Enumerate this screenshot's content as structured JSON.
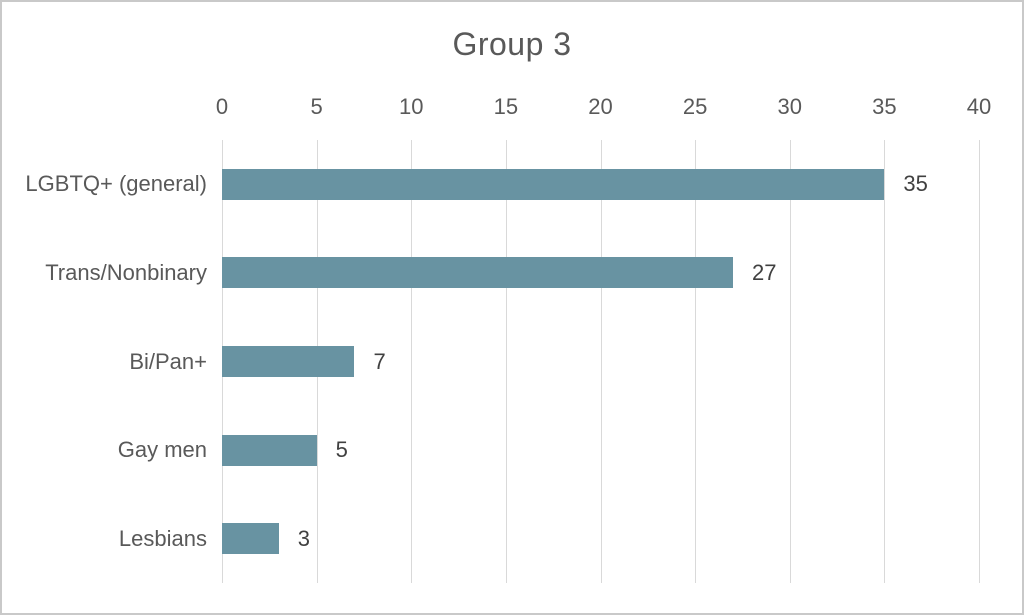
{
  "chart_data": {
    "type": "bar",
    "orientation": "horizontal",
    "title": "Group 3",
    "categories": [
      "LGBTQ+ (general)",
      "Trans/Nonbinary",
      "Bi/Pan+",
      "Gay men",
      "Lesbians"
    ],
    "values": [
      35,
      27,
      7,
      5,
      3
    ],
    "data_labels": [
      "35",
      "27",
      "7",
      "5",
      "3"
    ],
    "x_ticks": [
      "0",
      "5",
      "10",
      "15",
      "20",
      "25",
      "30",
      "35",
      "40"
    ],
    "x_tick_values": [
      0,
      5,
      10,
      15,
      20,
      25,
      30,
      35,
      40
    ],
    "xlim": [
      0,
      40
    ],
    "xlabel": "",
    "ylabel": "",
    "axis_position": "top",
    "grid": true,
    "legend": false,
    "colors": {
      "bar": "#6893A2",
      "title": "#595959",
      "axis_labels": "#595959",
      "category_labels": "#595959",
      "value_labels": "#404040",
      "gridline": "#D9D9D9",
      "border": "#C9C9C9",
      "background": "#FFFFFF"
    }
  }
}
